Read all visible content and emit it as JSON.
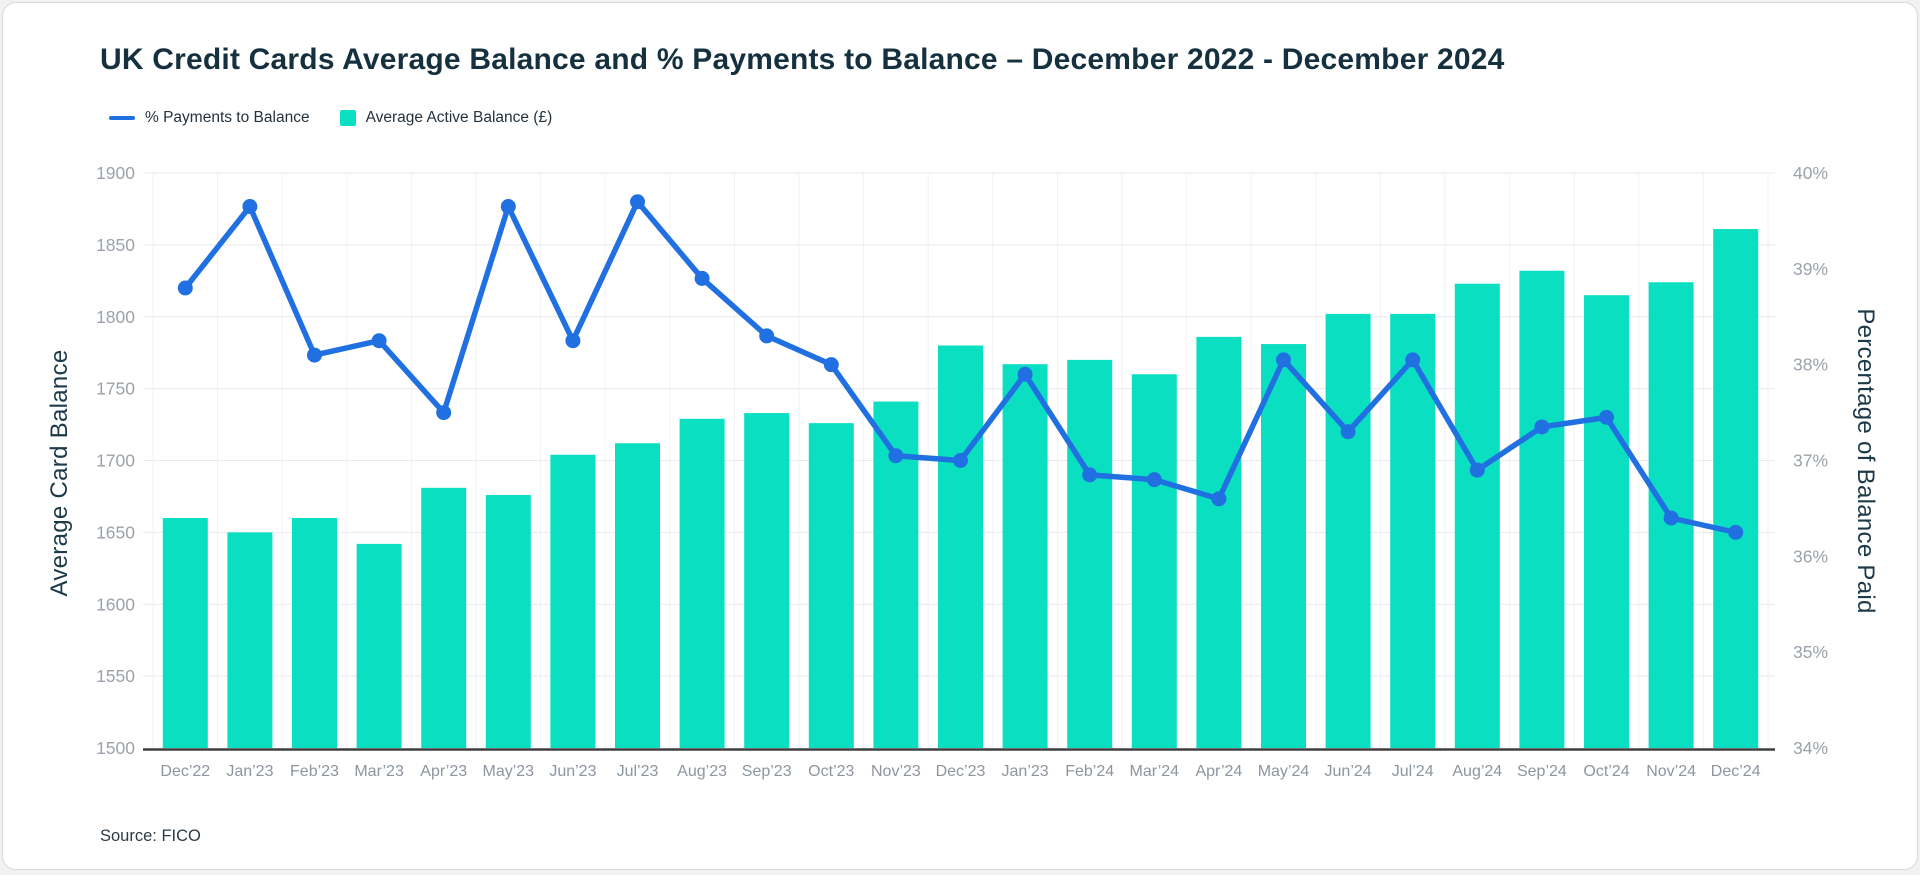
{
  "card": {
    "title": "UK Credit Cards Average Balance and % Payments to Balance – December 2022 - December 2024",
    "source": "Source: FICO"
  },
  "legend": [
    {
      "label": "% Payments to Balance",
      "type": "line",
      "color": "#2070e1"
    },
    {
      "label": "Average Active Balance (£)",
      "type": "square",
      "color": "#0bdfc2"
    }
  ],
  "chart_data": {
    "type": "bar+line",
    "title": "UK Credit Cards Average Balance and % Payments to Balance – December 2022 - December 2024",
    "categories": [
      "Dec’22",
      "Jan’23",
      "Feb’23",
      "Mar’23",
      "Apr’23",
      "May’23",
      "Jun’23",
      "Jul’23",
      "Aug’23",
      "Sep’23",
      "Oct’23",
      "Nov’23",
      "Dec’23",
      "Jan’23",
      "Feb’24",
      "Mar’24",
      "Apr’24",
      "May’24",
      "Jun’24",
      "Jul’24",
      "Aug’24",
      "Sep’24",
      "Oct’24",
      "Nov’24",
      "Dec’24"
    ],
    "series": [
      {
        "name": "Average Active Balance (£)",
        "type": "bar",
        "axis": "left",
        "color": "#0bdfc2",
        "values": [
          1660,
          1650,
          1660,
          1642,
          1681,
          1676,
          1704,
          1712,
          1729,
          1733,
          1726,
          1741,
          1780,
          1767,
          1770,
          1760,
          1786,
          1781,
          1802,
          1802,
          1823,
          1832,
          1815,
          1824,
          1861
        ]
      },
      {
        "name": "% Payments to Balance",
        "type": "line",
        "axis": "right",
        "color": "#2070e1",
        "values": [
          38.8,
          39.65,
          38.1,
          38.25,
          37.5,
          39.65,
          38.25,
          39.7,
          38.9,
          38.3,
          38.0,
          37.05,
          37.0,
          37.9,
          36.85,
          36.8,
          36.6,
          38.05,
          37.3,
          38.05,
          36.9,
          37.35,
          37.45,
          36.4,
          36.25
        ]
      }
    ],
    "left_axis": {
      "label": "Average Card Balance",
      "min": 1500,
      "max": 1900,
      "step": 50,
      "ticks": [
        1500,
        1550,
        1600,
        1650,
        1700,
        1750,
        1800,
        1850,
        1900
      ]
    },
    "right_axis": {
      "label": "Percentage of Balance Paid",
      "min": 34,
      "max": 40,
      "step": 1,
      "ticks": [
        "34%",
        "35%",
        "36%",
        "37%",
        "38%",
        "39%",
        "40%"
      ]
    },
    "grid": true,
    "legend_position": "top-left",
    "colors": {
      "grid_horizontal": "#e9e9ee",
      "grid_vertical": "#f2f2f5",
      "axis_line": "#3f3f3f",
      "tick_label": "#9aa2ab",
      "x_label": "#8d959e"
    }
  }
}
